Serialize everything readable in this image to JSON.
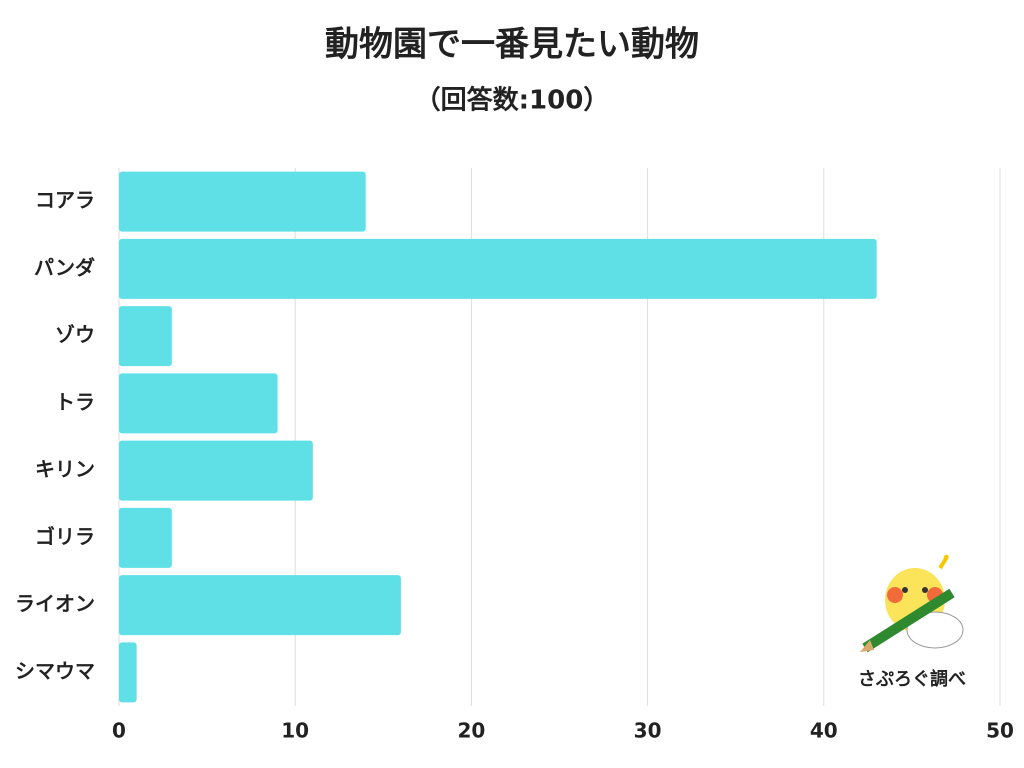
{
  "chart_data": {
    "type": "barh",
    "title": "動物園で一番見たい動物",
    "subtitle": "（回答数:100）",
    "categories": [
      "コアラ",
      "パンダ",
      "ゾウ",
      "トラ",
      "キリン",
      "ゴリラ",
      "ライオン",
      "シマウマ"
    ],
    "values": [
      14,
      43,
      3,
      9,
      11,
      3,
      16,
      1
    ],
    "color": "#5ee0e6",
    "xlim": [
      0,
      50
    ],
    "xticks": [
      0,
      10,
      20,
      30,
      40,
      50
    ],
    "grid": true,
    "annotation": "さぷろぐ調べ"
  }
}
